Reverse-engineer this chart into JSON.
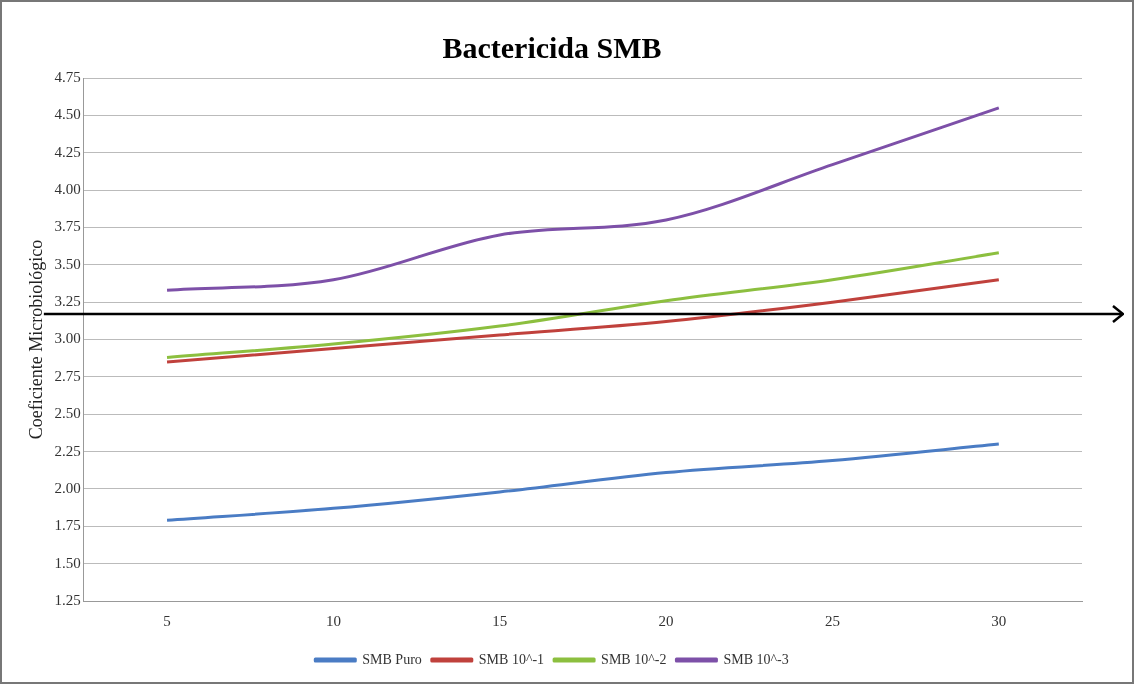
{
  "chart_data": {
    "type": "line",
    "title": "Bactericida SMB",
    "ylabel": "Coeficiente Microbiológico",
    "categories": [
      "5",
      "10",
      "15",
      "20",
      "25",
      "30"
    ],
    "series": [
      {
        "name": "SMB Puro",
        "color": "#4a7cc4",
        "values": [
          1.79,
          1.87,
          1.98,
          2.11,
          2.19,
          2.3
        ]
      },
      {
        "name": "SMB 10^-1",
        "color": "#c0413c",
        "values": [
          2.85,
          2.94,
          3.03,
          3.12,
          3.25,
          3.4
        ]
      },
      {
        "name": "SMB 10^-2",
        "color": "#8cbf3f",
        "values": [
          2.88,
          2.97,
          3.09,
          3.26,
          3.4,
          3.58
        ]
      },
      {
        "name": "SMB 10^-3",
        "color": "#7d50a8",
        "values": [
          3.33,
          3.4,
          3.7,
          3.8,
          4.17,
          4.55
        ]
      }
    ],
    "ylim": [
      1.25,
      4.75
    ],
    "yticks": [
      {
        "value": 1.25,
        "label": "1.25"
      },
      {
        "value": 1.5,
        "label": "1.50"
      },
      {
        "value": 1.75,
        "label": "1.75"
      },
      {
        "value": 2,
        "label": "2.00"
      },
      {
        "value": 2.25,
        "label": "2.25"
      },
      {
        "value": 2.5,
        "label": "2.50"
      },
      {
        "value": 2.75,
        "label": "2.75"
      },
      {
        "value": 3,
        "label": "3.00"
      },
      {
        "value": 3.25,
        "label": "3.25"
      },
      {
        "value": 3.5,
        "label": "3.50"
      },
      {
        "value": 3.75,
        "label": "3.75"
      },
      {
        "value": 4,
        "label": "4.00"
      },
      {
        "value": 4.25,
        "label": "4.25"
      },
      {
        "value": 4.5,
        "label": "4.50"
      },
      {
        "value": 4.75,
        "label": "4.75"
      }
    ],
    "grid": "y",
    "legend": "bottom",
    "marker": "none",
    "line_style": "solid",
    "ref_lines": [
      {
        "axis": "y",
        "value": 3.17,
        "color": "#000000"
      }
    ]
  }
}
